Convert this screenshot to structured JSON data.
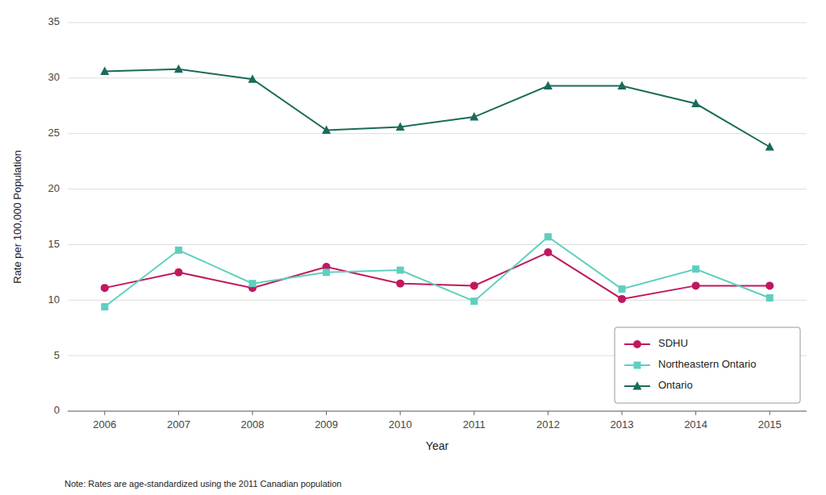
{
  "chart_data": {
    "type": "line",
    "x_label": "Year",
    "y_label": "Rate per 100,000 Population",
    "note": "Note: Rates are age-standardized using the 2011 Canadian population",
    "x": [
      2006,
      2007,
      2008,
      2009,
      2010,
      2011,
      2012,
      2013,
      2014,
      2015
    ],
    "series": [
      {
        "name": "SDHU",
        "color": "#c0185e",
        "marker": "circle",
        "values": [
          11.1,
          12.5,
          11.1,
          13.0,
          11.5,
          11.3,
          14.3,
          10.1,
          11.3,
          11.3
        ]
      },
      {
        "name": "Northeastern Ontario",
        "color": "#5ecfbf",
        "marker": "square",
        "values": [
          9.4,
          14.5,
          11.5,
          12.5,
          12.7,
          9.9,
          15.7,
          11.0,
          12.8,
          10.2
        ]
      },
      {
        "name": "Ontario",
        "color": "#1a6b5a",
        "marker": "triangle",
        "values": [
          30.6,
          30.8,
          29.9,
          25.3,
          25.6,
          26.5,
          29.3,
          29.3,
          27.7,
          23.8
        ]
      }
    ],
    "xlim": [
      2005.5,
      2015.5
    ],
    "xticks": [
      2006,
      2007,
      2008,
      2009,
      2010,
      2011,
      2012,
      2013,
      2014,
      2015
    ],
    "ylim": [
      0,
      35
    ],
    "yticks": [
      0,
      5,
      10,
      15,
      20,
      25,
      30,
      35
    ],
    "grid": true,
    "legend": "lower right"
  }
}
